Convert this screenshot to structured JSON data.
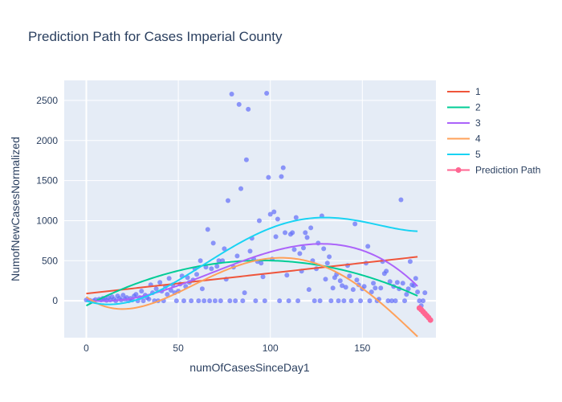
{
  "colors": {
    "plot_bg": "#E5ECF6",
    "grid": "#ffffff",
    "text": "#2a3f5f",
    "scatter": "#636EFA",
    "deg1": "#EF553B",
    "deg2": "#00CC96",
    "deg3": "#AB63FA",
    "deg4": "#FFA15A",
    "deg5": "#19D3F3",
    "prediction": "#FF6692"
  },
  "chart_data": {
    "type": "scatter",
    "title": "Prediction Path for Cases Imperial County",
    "xlabel": "numOfCasesSinceDay1",
    "ylabel": "NumofNewCasesNormalized",
    "xlim": [
      -12,
      190
    ],
    "ylim": [
      -460,
      2750
    ],
    "x_ticks": [
      0,
      50,
      100,
      150
    ],
    "y_ticks": [
      0,
      500,
      1000,
      1500,
      2000,
      2500
    ],
    "grid": true,
    "legend_position": "top-right",
    "scatter_points": [
      [
        0,
        10
      ],
      [
        2,
        5
      ],
      [
        4,
        0
      ],
      [
        5,
        15
      ],
      [
        7,
        20
      ],
      [
        8,
        10
      ],
      [
        9,
        30
      ],
      [
        10,
        25
      ],
      [
        11,
        5
      ],
      [
        12,
        40
      ],
      [
        13,
        10
      ],
      [
        14,
        50
      ],
      [
        15,
        20
      ],
      [
        16,
        0
      ],
      [
        17,
        60
      ],
      [
        18,
        30
      ],
      [
        19,
        10
      ],
      [
        20,
        70
      ],
      [
        21,
        20
      ],
      [
        22,
        40
      ],
      [
        23,
        0
      ],
      [
        24,
        30
      ],
      [
        25,
        10
      ],
      [
        26,
        60
      ],
      [
        27,
        80
      ],
      [
        28,
        0
      ],
      [
        29,
        40
      ],
      [
        30,
        120
      ],
      [
        31,
        0
      ],
      [
        32,
        70
      ],
      [
        33,
        40
      ],
      [
        34,
        20
      ],
      [
        35,
        200
      ],
      [
        36,
        100
      ],
      [
        37,
        0
      ],
      [
        38,
        150
      ],
      [
        39,
        0
      ],
      [
        40,
        230
      ],
      [
        41,
        120
      ],
      [
        42,
        0
      ],
      [
        43,
        180
      ],
      [
        44,
        80
      ],
      [
        45,
        280
      ],
      [
        46,
        130
      ],
      [
        47,
        200
      ],
      [
        48,
        100
      ],
      [
        49,
        0
      ],
      [
        50,
        120
      ],
      [
        51,
        210
      ],
      [
        52,
        310
      ],
      [
        53,
        0
      ],
      [
        54,
        180
      ],
      [
        55,
        290
      ],
      [
        56,
        230
      ],
      [
        57,
        0
      ],
      [
        58,
        260
      ],
      [
        59,
        400
      ],
      [
        60,
        330
      ],
      [
        61,
        0
      ],
      [
        62,
        500
      ],
      [
        63,
        150
      ],
      [
        64,
        0
      ],
      [
        65,
        420
      ],
      [
        66,
        890
      ],
      [
        67,
        0
      ],
      [
        68,
        400
      ],
      [
        69,
        720
      ],
      [
        70,
        0
      ],
      [
        71,
        430
      ],
      [
        72,
        500
      ],
      [
        73,
        0
      ],
      [
        74,
        500
      ],
      [
        75,
        650
      ],
      [
        76,
        270
      ],
      [
        77,
        1250
      ],
      [
        78,
        0
      ],
      [
        79,
        2580
      ],
      [
        80,
        420
      ],
      [
        81,
        0
      ],
      [
        82,
        560
      ],
      [
        83,
        2450
      ],
      [
        84,
        1400
      ],
      [
        85,
        0
      ],
      [
        86,
        100
      ],
      [
        87,
        1760
      ],
      [
        88,
        2390
      ],
      [
        89,
        620
      ],
      [
        90,
        780
      ],
      [
        91,
        520
      ],
      [
        92,
        0
      ],
      [
        93,
        490
      ],
      [
        94,
        1000
      ],
      [
        95,
        470
      ],
      [
        96,
        300
      ],
      [
        97,
        0
      ],
      [
        98,
        2590
      ],
      [
        99,
        1540
      ],
      [
        100,
        1080
      ],
      [
        101,
        520
      ],
      [
        102,
        1110
      ],
      [
        103,
        800
      ],
      [
        104,
        1020
      ],
      [
        105,
        0
      ],
      [
        106,
        1550
      ],
      [
        107,
        1660
      ],
      [
        108,
        850
      ],
      [
        109,
        320
      ],
      [
        110,
        0
      ],
      [
        111,
        830
      ],
      [
        112,
        850
      ],
      [
        113,
        640
      ],
      [
        114,
        1040
      ],
      [
        115,
        0
      ],
      [
        116,
        590
      ],
      [
        117,
        370
      ],
      [
        118,
        660
      ],
      [
        119,
        850
      ],
      [
        120,
        790
      ],
      [
        121,
        140
      ],
      [
        122,
        910
      ],
      [
        123,
        500
      ],
      [
        124,
        0
      ],
      [
        125,
        400
      ],
      [
        126,
        720
      ],
      [
        127,
        0
      ],
      [
        128,
        1060
      ],
      [
        129,
        650
      ],
      [
        130,
        270
      ],
      [
        131,
        470
      ],
      [
        132,
        550
      ],
      [
        133,
        0
      ],
      [
        134,
        160
      ],
      [
        135,
        290
      ],
      [
        136,
        330
      ],
      [
        137,
        0
      ],
      [
        138,
        250
      ],
      [
        139,
        190
      ],
      [
        140,
        0
      ],
      [
        141,
        170
      ],
      [
        142,
        440
      ],
      [
        143,
        310
      ],
      [
        144,
        0
      ],
      [
        145,
        140
      ],
      [
        146,
        960
      ],
      [
        147,
        260
      ],
      [
        148,
        200
      ],
      [
        149,
        0
      ],
      [
        150,
        150
      ],
      [
        151,
        180
      ],
      [
        152,
        470
      ],
      [
        153,
        680
      ],
      [
        154,
        0
      ],
      [
        155,
        110
      ],
      [
        156,
        220
      ],
      [
        157,
        160
      ],
      [
        158,
        0
      ],
      [
        159,
        20
      ],
      [
        160,
        160
      ],
      [
        161,
        490
      ],
      [
        162,
        340
      ],
      [
        163,
        370
      ],
      [
        164,
        0
      ],
      [
        165,
        240
      ],
      [
        166,
        0
      ],
      [
        167,
        180
      ],
      [
        168,
        0
      ],
      [
        169,
        230
      ],
      [
        170,
        150
      ],
      [
        171,
        1260
      ],
      [
        172,
        220
      ],
      [
        173,
        0
      ],
      [
        174,
        80
      ],
      [
        175,
        150
      ],
      [
        176,
        490
      ],
      [
        177,
        200
      ],
      [
        178,
        190
      ],
      [
        179,
        280
      ],
      [
        180,
        110
      ],
      [
        181,
        0
      ],
      [
        182,
        -60
      ],
      [
        183,
        0
      ],
      [
        184,
        100
      ]
    ],
    "series": [
      {
        "name": "1",
        "color_key": "deg1",
        "coefficients": [
          90,
          2.55
        ]
      },
      {
        "name": "2",
        "color_key": "deg2",
        "coefficients": [
          -60,
          11.8,
          -0.0618
        ]
      },
      {
        "name": "3",
        "color_key": "deg3",
        "coefficients": [
          10,
          -3,
          0.175,
          -0.00085
        ]
      },
      {
        "name": "4",
        "color_key": "deg4",
        "coefficients": [
          50,
          -17,
          0.55,
          -0.0042,
          8.8e-06
        ]
      },
      {
        "name": "5",
        "color_key": "deg5",
        "coefficients": [
          0,
          -7.5,
          0.33,
          -0.0013,
          -6.7e-06,
          3.25e-08
        ]
      }
    ],
    "fit_x_range": [
      0,
      180
    ],
    "prediction_path": {
      "name": "Prediction Path",
      "x": [
        181,
        182,
        183,
        184,
        185,
        186,
        187
      ],
      "y": [
        -90,
        -110,
        -135,
        -160,
        -185,
        -210,
        -240
      ]
    }
  }
}
